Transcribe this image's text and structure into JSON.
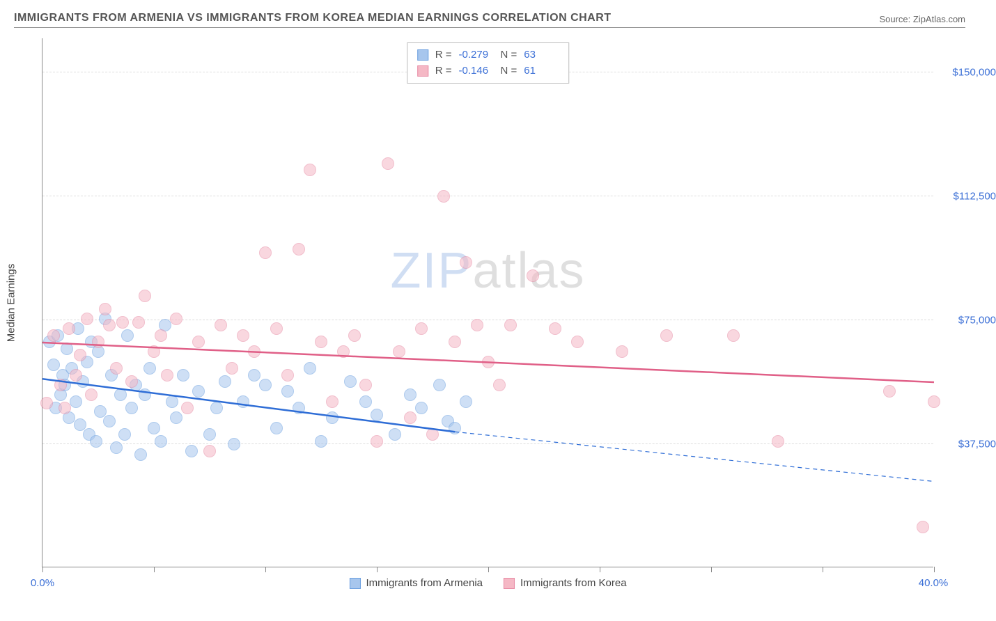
{
  "title": "IMMIGRANTS FROM ARMENIA VS IMMIGRANTS FROM KOREA MEDIAN EARNINGS CORRELATION CHART",
  "source": "Source: ZipAtlas.com",
  "watermark": {
    "zip": "ZIP",
    "atlas": "atlas"
  },
  "chart": {
    "type": "scatter-with-regression",
    "xlim": [
      0,
      40
    ],
    "ylim": [
      0,
      160000
    ],
    "x_ticks": [
      0,
      5,
      10,
      15,
      20,
      25,
      30,
      35,
      40
    ],
    "x_tick_labels_visible": {
      "0": "0.0%",
      "40": "40.0%"
    },
    "y_ticks": [
      37500,
      75000,
      112500,
      150000
    ],
    "y_tick_labels": [
      "$37,500",
      "$75,000",
      "$112,500",
      "$150,000"
    ],
    "y_axis_title": "Median Earnings",
    "background_color": "#ffffff",
    "grid_color": "#dddddd",
    "axis_color": "#888888",
    "series": [
      {
        "name": "Immigrants from Armenia",
        "fill_color": "#a7c6ed",
        "fill_opacity": 0.55,
        "stroke_color": "#6b9fe0",
        "line_color": "#2e6dd6",
        "line_width": 2.5,
        "marker_radius": 9,
        "R": "-0.279",
        "N": "63",
        "regression": {
          "x1": 0,
          "y1": 57000,
          "x2": 18.5,
          "y2": 41000,
          "x2_dash": 40,
          "y2_dash": 26000
        },
        "points": [
          [
            0.3,
            68000
          ],
          [
            0.5,
            61000
          ],
          [
            0.6,
            48000
          ],
          [
            0.7,
            70000
          ],
          [
            0.8,
            52000
          ],
          [
            0.9,
            58000
          ],
          [
            1.0,
            55000
          ],
          [
            1.1,
            66000
          ],
          [
            1.2,
            45000
          ],
          [
            1.3,
            60000
          ],
          [
            1.5,
            50000
          ],
          [
            1.6,
            72000
          ],
          [
            1.7,
            43000
          ],
          [
            1.8,
            56000
          ],
          [
            2.0,
            62000
          ],
          [
            2.1,
            40000
          ],
          [
            2.2,
            68000
          ],
          [
            2.4,
            38000
          ],
          [
            2.5,
            65000
          ],
          [
            2.6,
            47000
          ],
          [
            2.8,
            75000
          ],
          [
            3.0,
            44000
          ],
          [
            3.1,
            58000
          ],
          [
            3.3,
            36000
          ],
          [
            3.5,
            52000
          ],
          [
            3.7,
            40000
          ],
          [
            3.8,
            70000
          ],
          [
            4.0,
            48000
          ],
          [
            4.2,
            55000
          ],
          [
            4.4,
            34000
          ],
          [
            4.6,
            52000
          ],
          [
            4.8,
            60000
          ],
          [
            5.0,
            42000
          ],
          [
            5.3,
            38000
          ],
          [
            5.5,
            73000
          ],
          [
            5.8,
            50000
          ],
          [
            6.0,
            45000
          ],
          [
            6.3,
            58000
          ],
          [
            6.7,
            35000
          ],
          [
            7.0,
            53000
          ],
          [
            7.5,
            40000
          ],
          [
            7.8,
            48000
          ],
          [
            8.2,
            56000
          ],
          [
            8.6,
            37000
          ],
          [
            9.0,
            50000
          ],
          [
            9.5,
            58000
          ],
          [
            10.0,
            55000
          ],
          [
            10.5,
            42000
          ],
          [
            11.0,
            53000
          ],
          [
            11.5,
            48000
          ],
          [
            12.0,
            60000
          ],
          [
            12.5,
            38000
          ],
          [
            13.0,
            45000
          ],
          [
            13.8,
            56000
          ],
          [
            14.5,
            50000
          ],
          [
            15.0,
            46000
          ],
          [
            15.8,
            40000
          ],
          [
            16.5,
            52000
          ],
          [
            17.0,
            48000
          ],
          [
            17.8,
            55000
          ],
          [
            18.2,
            44000
          ],
          [
            18.5,
            42000
          ],
          [
            19.0,
            50000
          ]
        ]
      },
      {
        "name": "Immigrants from Korea",
        "fill_color": "#f5b8c5",
        "fill_opacity": 0.55,
        "stroke_color": "#e78aa4",
        "line_color": "#e05f87",
        "line_width": 2.5,
        "marker_radius": 9,
        "R": "-0.146",
        "N": "61",
        "regression": {
          "x1": 0,
          "y1": 68000,
          "x2": 40,
          "y2": 56000
        },
        "points": [
          [
            0.2,
            49500
          ],
          [
            0.5,
            70000
          ],
          [
            0.8,
            55000
          ],
          [
            1.0,
            48000
          ],
          [
            1.2,
            72000
          ],
          [
            1.5,
            58000
          ],
          [
            1.7,
            64000
          ],
          [
            2.0,
            75000
          ],
          [
            2.2,
            52000
          ],
          [
            2.5,
            68000
          ],
          [
            2.8,
            78000
          ],
          [
            3.0,
            73000
          ],
          [
            3.3,
            60000
          ],
          [
            3.6,
            74000
          ],
          [
            4.0,
            56000
          ],
          [
            4.3,
            74000
          ],
          [
            4.6,
            82000
          ],
          [
            5.0,
            65000
          ],
          [
            5.3,
            70000
          ],
          [
            5.6,
            58000
          ],
          [
            6.0,
            75000
          ],
          [
            6.5,
            48000
          ],
          [
            7.0,
            68000
          ],
          [
            7.5,
            35000
          ],
          [
            8.0,
            73000
          ],
          [
            8.5,
            60000
          ],
          [
            9.0,
            70000
          ],
          [
            9.5,
            65000
          ],
          [
            10.0,
            95000
          ],
          [
            10.5,
            72000
          ],
          [
            11.0,
            58000
          ],
          [
            11.5,
            96000
          ],
          [
            12.0,
            120000
          ],
          [
            12.5,
            68000
          ],
          [
            13.0,
            50000
          ],
          [
            13.5,
            65000
          ],
          [
            14.0,
            70000
          ],
          [
            14.5,
            55000
          ],
          [
            15.0,
            38000
          ],
          [
            15.5,
            122000
          ],
          [
            16.0,
            65000
          ],
          [
            16.5,
            45000
          ],
          [
            17.0,
            72000
          ],
          [
            17.5,
            40000
          ],
          [
            18.0,
            112000
          ],
          [
            18.5,
            68000
          ],
          [
            19.0,
            92000
          ],
          [
            19.5,
            73000
          ],
          [
            20.0,
            62000
          ],
          [
            20.5,
            55000
          ],
          [
            21.0,
            73000
          ],
          [
            22.0,
            88000
          ],
          [
            23.0,
            72000
          ],
          [
            24.0,
            68000
          ],
          [
            26.0,
            65000
          ],
          [
            28.0,
            70000
          ],
          [
            31.0,
            70000
          ],
          [
            33.0,
            38000
          ],
          [
            38.0,
            53000
          ],
          [
            39.5,
            12000
          ],
          [
            40.0,
            50000
          ]
        ]
      }
    ]
  }
}
